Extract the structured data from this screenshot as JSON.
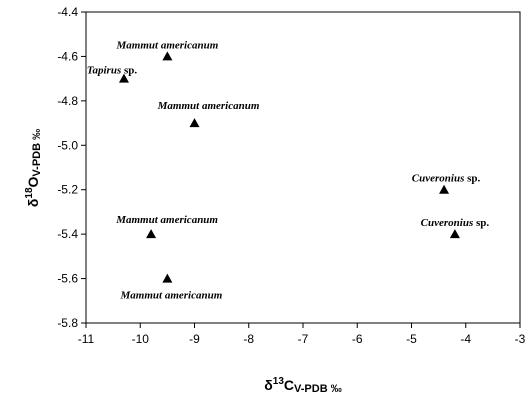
{
  "chart_data": {
    "type": "scatter",
    "title": "",
    "xlabel": {
      "prefix": "δ",
      "sup": "13",
      "main": "C",
      "sub": "V-PDB ‰"
    },
    "ylabel": {
      "prefix": "δ",
      "sup": "18",
      "main": "O",
      "sub": "V-PDB ‰"
    },
    "xlim": [
      -11,
      -3
    ],
    "ylim": [
      -5.8,
      -4.4
    ],
    "xticks": [
      "-11",
      "-10",
      "-9",
      "-8",
      "-7",
      "-6",
      "-5",
      "-4",
      "-3"
    ],
    "yticks": [
      "-4.4",
      "-4.6",
      "-4.8",
      "-5.0",
      "-5.2",
      "-5.4",
      "-5.6",
      "-5.8"
    ],
    "grid": false,
    "marker": "triangle",
    "points": [
      {
        "x": -9.5,
        "y": -4.6,
        "genus": "Mammut",
        "epithet": "americanum",
        "rest": "",
        "anchor": "middle",
        "dx": 0,
        "dy": -8
      },
      {
        "x": -10.3,
        "y": -4.7,
        "genus": "Tapirus",
        "epithet": "",
        "rest": " sp.",
        "anchor": "middle",
        "dx": -12,
        "dy": -5
      },
      {
        "x": -9.0,
        "y": -4.9,
        "genus": "Mammut",
        "epithet": "americanum",
        "rest": "",
        "anchor": "middle",
        "dx": 14,
        "dy": -14
      },
      {
        "x": -4.4,
        "y": -5.2,
        "genus": "Cuveronius",
        "epithet": "",
        "rest": " sp.",
        "anchor": "middle",
        "dx": 2,
        "dy": -8
      },
      {
        "x": -4.2,
        "y": -5.4,
        "genus": "Cuveronius",
        "epithet": "",
        "rest": " sp.",
        "anchor": "middle",
        "dx": 0,
        "dy": -8
      },
      {
        "x": -9.8,
        "y": -5.4,
        "genus": "Mammut",
        "epithet": "americanum",
        "rest": "",
        "anchor": "middle",
        "dx": 16,
        "dy": -11
      },
      {
        "x": -9.5,
        "y": -5.6,
        "genus": "Mammut",
        "epithet": "americanum",
        "rest": "",
        "anchor": "middle",
        "dx": 4,
        "dy": 20
      }
    ]
  }
}
